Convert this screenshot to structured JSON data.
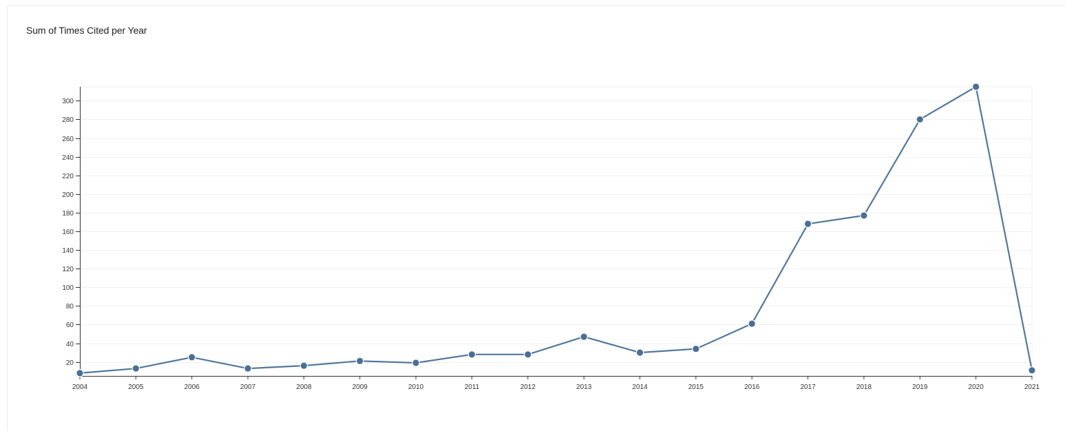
{
  "panel": {
    "title": "Sum of Times Cited per Year"
  },
  "colors": {
    "line": "#52779b",
    "point": "#4a6f96",
    "point_stroke": "#ffffff",
    "axis": "#333333",
    "grid": "#f0f0f0"
  },
  "chart_data": {
    "type": "line",
    "title": "Sum of Times Cited per Year",
    "xlabel": "",
    "ylabel": "",
    "categories": [
      "2004",
      "2005",
      "2006",
      "2007",
      "2008",
      "2009",
      "2010",
      "2011",
      "2012",
      "2013",
      "2014",
      "2015",
      "2016",
      "2017",
      "2018",
      "2019",
      "2020",
      "2021"
    ],
    "series": [
      {
        "values": [
          8,
          13,
          25,
          13,
          16,
          21,
          19,
          28,
          28,
          47,
          30,
          34,
          61,
          168,
          177,
          280,
          315,
          11
        ]
      }
    ],
    "yticks": [
      20,
      40,
      60,
      80,
      100,
      120,
      140,
      160,
      180,
      200,
      220,
      240,
      260,
      280,
      300
    ],
    "ylim": [
      5,
      315
    ],
    "grid": "horizontal",
    "legend": "none"
  }
}
